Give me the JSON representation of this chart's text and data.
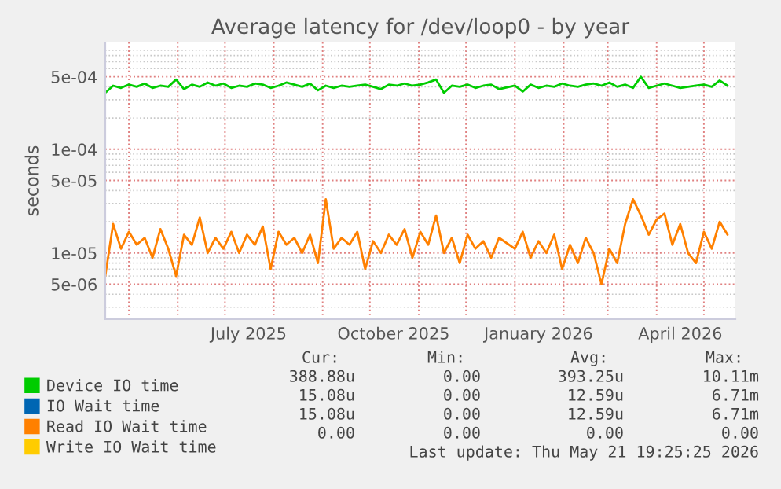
{
  "chart_data": {
    "type": "line",
    "title": "Average latency for /dev/loop0 - by year",
    "ylabel": "seconds",
    "log": true,
    "ylim": [
      2.3e-06,
      0.00107
    ],
    "yticks": [
      {
        "value": 5e-06,
        "label": "5e-06"
      },
      {
        "value": 1e-05,
        "label": "1e-05"
      },
      {
        "value": 5e-05,
        "label": "5e-05"
      },
      {
        "value": 0.0001,
        "label": "1e-04"
      },
      {
        "value": 0.0005,
        "label": "5e-04"
      }
    ],
    "xlim": [
      "2025-04-16",
      "2026-05-21"
    ],
    "xticks": [
      {
        "value": "2025-07-16",
        "label": "July 2025"
      },
      {
        "value": "2025-10-16",
        "label": "October 2025"
      },
      {
        "value": "2026-01-16",
        "label": "January 2026"
      },
      {
        "value": "2026-04-16",
        "label": "April 2026"
      }
    ],
    "grid": true,
    "legend": "bottom",
    "x": [
      "2025-04-16",
      "2025-04-21",
      "2025-04-26",
      "2025-05-01",
      "2025-05-06",
      "2025-05-11",
      "2025-05-16",
      "2025-05-21",
      "2025-05-26",
      "2025-05-31",
      "2025-06-05",
      "2025-06-10",
      "2025-06-15",
      "2025-06-20",
      "2025-06-25",
      "2025-06-30",
      "2025-07-05",
      "2025-07-10",
      "2025-07-15",
      "2025-07-20",
      "2025-07-25",
      "2025-07-30",
      "2025-08-04",
      "2025-08-09",
      "2025-08-14",
      "2025-08-19",
      "2025-08-24",
      "2025-08-29",
      "2025-09-03",
      "2025-09-08",
      "2025-09-13",
      "2025-09-18",
      "2025-09-23",
      "2025-09-28",
      "2025-10-03",
      "2025-10-08",
      "2025-10-13",
      "2025-10-18",
      "2025-10-23",
      "2025-10-28",
      "2025-11-02",
      "2025-11-07",
      "2025-11-12",
      "2025-11-17",
      "2025-11-22",
      "2025-11-27",
      "2025-12-02",
      "2025-12-07",
      "2025-12-12",
      "2025-12-17",
      "2025-12-22",
      "2026-01-01",
      "2026-01-06",
      "2026-01-11",
      "2026-01-16",
      "2026-01-21",
      "2026-01-26",
      "2026-01-31",
      "2026-02-05",
      "2026-02-10",
      "2026-02-15",
      "2026-02-20",
      "2026-02-25",
      "2026-03-02",
      "2026-03-07",
      "2026-03-12",
      "2026-03-17",
      "2026-03-22",
      "2026-03-27",
      "2026-04-01",
      "2026-04-06",
      "2026-04-11",
      "2026-04-16",
      "2026-04-21",
      "2026-04-26",
      "2026-05-01",
      "2026-05-06",
      "2026-05-11",
      "2026-05-16"
    ],
    "series": [
      {
        "name": "Device IO time",
        "color": "#00cc00",
        "values": [
          0.00035,
          0.00041,
          0.00039,
          0.00042,
          0.0004,
          0.00043,
          0.00039,
          0.00041,
          0.0004,
          0.00047,
          0.00038,
          0.00042,
          0.0004,
          0.00044,
          0.00041,
          0.00043,
          0.00039,
          0.00041,
          0.0004,
          0.00043,
          0.00042,
          0.00039,
          0.00041,
          0.00044,
          0.00042,
          0.0004,
          0.00043,
          0.00037,
          0.00041,
          0.00039,
          0.00041,
          0.0004,
          0.00041,
          0.00042,
          0.0004,
          0.00038,
          0.00042,
          0.00041,
          0.00043,
          0.00041,
          0.00042,
          0.00044,
          0.00047,
          0.00035,
          0.00041,
          0.0004,
          0.00042,
          0.00039,
          0.00041,
          0.00042,
          0.00038,
          0.00041,
          0.00036,
          0.00042,
          0.00039,
          0.00041,
          0.0004,
          0.00043,
          0.00041,
          0.0004,
          0.00042,
          0.00043,
          0.00041,
          0.00044,
          0.0004,
          0.00042,
          0.00039,
          0.0005,
          0.00039,
          0.00041,
          0.00043,
          0.00041,
          0.00039,
          0.0004,
          0.00041,
          0.00042,
          0.0004,
          0.00046,
          0.00041
        ]
      },
      {
        "name": "IO Wait time",
        "color": "#0066b3",
        "values": [
          null,
          null,
          null,
          null,
          null,
          null,
          null,
          null,
          null,
          null,
          null,
          null,
          null,
          null,
          null,
          null,
          null,
          null,
          null,
          null,
          null,
          null,
          null,
          null,
          null,
          null,
          null,
          null,
          null,
          null,
          null,
          null,
          null,
          null,
          null,
          null,
          null,
          null,
          null,
          null,
          null,
          null,
          null,
          null,
          null,
          null,
          null,
          null,
          null,
          null,
          null,
          null,
          null,
          null,
          null,
          null,
          null,
          null,
          null,
          null,
          null,
          null,
          null,
          null,
          null,
          null,
          null,
          null,
          null,
          null,
          null,
          null,
          null,
          null,
          null,
          null,
          null,
          null,
          null
        ]
      },
      {
        "name": "Read IO Wait time",
        "color": "#ff8000",
        "values": [
          6e-06,
          1.9e-05,
          1.1e-05,
          1.6e-05,
          1.2e-05,
          1.4e-05,
          9e-06,
          1.7e-05,
          1.1e-05,
          6e-06,
          1.5e-05,
          1.2e-05,
          2.2e-05,
          1e-05,
          1.4e-05,
          1.1e-05,
          1.6e-05,
          1e-05,
          1.5e-05,
          1.2e-05,
          1.8e-05,
          7e-06,
          1.6e-05,
          1.2e-05,
          1.4e-05,
          1e-05,
          1.5e-05,
          8e-06,
          3.3e-05,
          1.1e-05,
          1.4e-05,
          1.2e-05,
          1.6e-05,
          7e-06,
          1.3e-05,
          1e-05,
          1.5e-05,
          1.2e-05,
          1.7e-05,
          9e-06,
          1.6e-05,
          1.2e-05,
          2.3e-05,
          1e-05,
          1.4e-05,
          8e-06,
          1.5e-05,
          1.1e-05,
          1.3e-05,
          9e-06,
          1.4e-05,
          1.1e-05,
          1.6e-05,
          9e-06,
          1.3e-05,
          1e-05,
          1.5e-05,
          7e-06,
          1.2e-05,
          8e-06,
          1.4e-05,
          1e-05,
          5e-06,
          1.1e-05,
          8e-06,
          1.9e-05,
          3.3e-05,
          2.3e-05,
          1.5e-05,
          2.1e-05,
          2.4e-05,
          1.2e-05,
          1.9e-05,
          1e-05,
          8e-06,
          1.6e-05,
          1.1e-05,
          2e-05,
          1.5e-05
        ]
      },
      {
        "name": "Write IO Wait time",
        "color": "#ffcc00",
        "values": [
          null,
          null,
          null,
          null,
          null,
          null,
          null,
          null,
          null,
          null,
          null,
          null,
          null,
          null,
          null,
          null,
          null,
          null,
          null,
          null,
          null,
          null,
          null,
          null,
          null,
          null,
          null,
          null,
          null,
          null,
          null,
          null,
          null,
          null,
          null,
          null,
          null,
          null,
          null,
          null,
          null,
          null,
          null,
          null,
          null,
          null,
          null,
          null,
          null,
          null,
          null,
          null,
          null,
          null,
          null,
          null,
          null,
          null,
          null,
          null,
          null,
          null,
          null,
          null,
          null,
          null,
          null,
          null,
          null,
          null,
          null,
          null,
          null,
          null,
          null,
          null,
          null,
          null,
          null
        ]
      }
    ],
    "annotations": [
      "Cur:",
      "Min:",
      "Avg:",
      "Max:",
      "388.88u",
      "0.00",
      "393.25u",
      "10.11m",
      "15.08u",
      "0.00",
      "12.59u",
      "6.71m",
      "15.08u",
      "0.00",
      "12.59u",
      "6.71m",
      "0.00",
      "0.00",
      "0.00",
      "0.00",
      "Last update: Thu May 21 19:25:25 2026"
    ]
  }
}
